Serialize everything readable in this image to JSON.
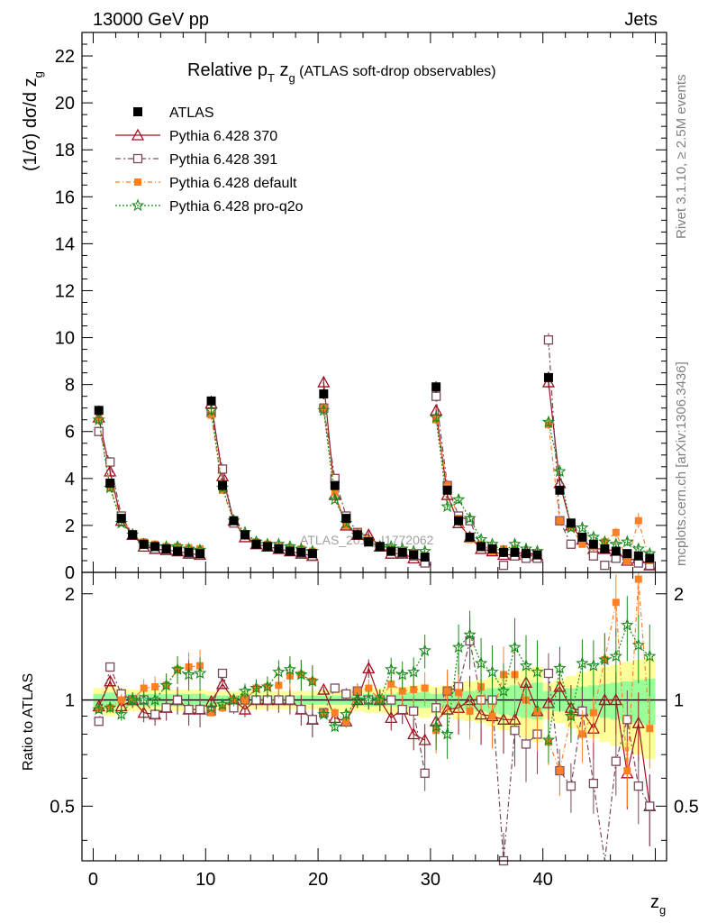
{
  "header": {
    "left": "13000 GeV pp",
    "right": "Jets"
  },
  "side_labels": {
    "rivet": "Rivet 3.1.10, ≥ 2.5M events",
    "mcplots": "mcplots.cern.ch [arXiv:1306.3436]"
  },
  "watermark": "ATLAS_2019_I1772062",
  "colors": {
    "atlas": "#000000",
    "p370": "#a01020",
    "p391": "#7a4a5a",
    "pdefault": "#ff7f24",
    "pq2o": "#1a8a1a",
    "band_yellow": "#ffff99",
    "band_green": "#99ff99"
  },
  "chart_data": [
    {
      "type": "scatter",
      "title_main": "Relative p",
      "title_sub": "T",
      "title_var": " z",
      "title_var_sub": "g",
      "title_rest": " (ATLAS soft-drop observables)",
      "ylabel": "(1/σ) dσ/d z",
      "ylabel_sub": "g",
      "xlim": [
        -1,
        51
      ],
      "ylim": [
        0,
        23
      ],
      "yticks": [
        0,
        2,
        4,
        6,
        8,
        10,
        12,
        14,
        16,
        18,
        20,
        22
      ],
      "x": [
        0.5,
        1.5,
        2.5,
        3.5,
        4.5,
        5.5,
        6.5,
        7.5,
        8.5,
        9.5,
        10.5,
        11.5,
        12.5,
        13.5,
        14.5,
        15.5,
        16.5,
        17.5,
        18.5,
        19.5,
        20.5,
        21.5,
        22.5,
        23.5,
        24.5,
        25.5,
        26.5,
        27.5,
        28.5,
        29.5,
        30.5,
        31.5,
        32.5,
        33.5,
        34.5,
        35.5,
        36.5,
        37.5,
        38.5,
        39.5,
        40.5,
        41.5,
        42.5,
        43.5,
        44.5,
        45.5,
        46.5,
        47.5,
        48.5,
        49.5
      ],
      "series": [
        {
          "name": "ATLAS",
          "values": [
            6.9,
            3.8,
            2.3,
            1.6,
            1.2,
            1.1,
            1.0,
            0.9,
            0.85,
            0.8,
            7.3,
            3.7,
            2.2,
            1.6,
            1.2,
            1.1,
            1.0,
            0.9,
            0.85,
            0.8,
            7.6,
            3.7,
            2.3,
            1.6,
            1.3,
            1.1,
            0.9,
            0.85,
            0.75,
            0.65,
            7.9,
            3.5,
            2.2,
            1.5,
            1.1,
            1.0,
            0.85,
            0.85,
            0.8,
            0.75,
            8.3,
            3.5,
            2.1,
            1.5,
            1.2,
            1.0,
            0.9,
            0.8,
            0.7,
            0.6
          ]
        },
        {
          "name": "Pythia 6.428 370",
          "values": [
            6.6,
            4.3,
            2.2,
            1.6,
            1.1,
            1.0,
            0.95,
            0.9,
            0.8,
            0.75,
            7.2,
            4.1,
            2.2,
            1.5,
            1.2,
            1.1,
            1.0,
            0.9,
            0.8,
            0.7,
            8.1,
            3.3,
            2.0,
            1.6,
            1.6,
            1.1,
            0.8,
            0.8,
            0.6,
            0.5,
            6.9,
            3.3,
            2.1,
            1.5,
            1.0,
            0.9,
            0.75,
            0.75,
            0.9,
            0.7,
            8.1,
            3.8,
            2.0,
            1.4,
            1.0,
            1.0,
            0.9,
            0.5,
            0.6,
            0.3
          ]
        },
        {
          "name": "Pythia 6.428 391",
          "values": [
            6.0,
            4.7,
            2.4,
            1.6,
            1.2,
            1.0,
            0.95,
            0.9,
            0.8,
            0.75,
            6.8,
            4.4,
            2.1,
            1.6,
            1.2,
            1.1,
            1.0,
            0.9,
            0.8,
            0.7,
            7.0,
            4.0,
            2.4,
            1.7,
            1.3,
            1.1,
            0.9,
            0.8,
            0.7,
            0.4,
            7.5,
            3.7,
            2.4,
            2.2,
            1.1,
            1.0,
            0.3,
            0.7,
            0.6,
            0.6,
            9.9,
            2.2,
            1.2,
            1.4,
            0.7,
            0.3,
            0.6,
            0.7,
            0.4,
            0.3
          ]
        },
        {
          "name": "Pythia 6.428 default",
          "values": [
            6.5,
            3.6,
            2.3,
            1.6,
            1.3,
            1.2,
            1.1,
            1.1,
            1.05,
            1.0,
            6.7,
            3.5,
            2.2,
            1.6,
            1.3,
            1.2,
            1.1,
            1.05,
            1.0,
            0.9,
            7.0,
            3.4,
            2.0,
            1.7,
            1.4,
            1.1,
            1.0,
            0.9,
            0.8,
            0.7,
            6.5,
            3.7,
            2.3,
            1.4,
            1.2,
            0.9,
            1.0,
            1.0,
            0.8,
            0.7,
            6.3,
            2.2,
            1.9,
            1.2,
            1.1,
            1.3,
            1.7,
            0.5,
            2.2,
            0.5
          ]
        },
        {
          "name": "Pythia 6.428 pro-q2o",
          "values": [
            6.5,
            3.6,
            2.1,
            1.6,
            1.2,
            1.1,
            1.1,
            1.1,
            1.0,
            0.95,
            6.9,
            3.6,
            2.2,
            1.7,
            1.3,
            1.2,
            1.2,
            1.1,
            1.0,
            0.9,
            6.9,
            3.1,
            2.1,
            1.6,
            1.3,
            1.1,
            1.1,
            1.0,
            0.9,
            0.9,
            6.6,
            2.8,
            3.1,
            2.3,
            1.4,
            1.2,
            0.9,
            1.2,
            1.0,
            0.9,
            6.4,
            4.3,
            1.9,
            1.9,
            1.5,
            1.3,
            1.2,
            1.3,
            1.0,
            0.8
          ]
        }
      ]
    },
    {
      "type": "scatter",
      "ylabel": "Ratio to ATLAS",
      "xlabel": "z",
      "xlabel_sub": "g",
      "xlim": [
        -1,
        51
      ],
      "ylim": [
        0.35,
        2.3
      ],
      "yticks": [
        0.5,
        1,
        2
      ],
      "xticks": [
        0,
        10,
        20,
        30,
        40
      ],
      "reference_line": 1,
      "series": [
        {
          "name": "Pythia 6.428 370",
          "values": [
            0.96,
            1.13,
            0.96,
            1.0,
            0.92,
            0.91,
            0.95,
            1.0,
            0.94,
            0.94,
            0.99,
            1.11,
            1.0,
            0.94,
            1.0,
            1.0,
            1.0,
            1.0,
            0.94,
            0.88,
            1.07,
            0.89,
            0.87,
            1.0,
            1.23,
            1.0,
            0.89,
            0.94,
            0.8,
            0.77,
            0.87,
            0.94,
            0.95,
            1.0,
            0.91,
            0.9,
            0.88,
            0.88,
            1.12,
            0.93,
            0.98,
            1.09,
            0.95,
            0.93,
            0.83,
            1.0,
            1.0,
            0.62,
            0.86,
            0.5
          ]
        },
        {
          "name": "Pythia 6.428 391",
          "values": [
            0.87,
            1.24,
            1.04,
            1.0,
            1.0,
            0.91,
            0.95,
            1.0,
            0.94,
            0.94,
            0.93,
            1.19,
            0.95,
            1.0,
            1.0,
            1.0,
            1.0,
            1.0,
            0.94,
            0.88,
            0.92,
            1.08,
            1.04,
            1.06,
            1.0,
            1.0,
            1.0,
            0.94,
            0.93,
            0.62,
            0.95,
            1.06,
            1.09,
            1.47,
            1.0,
            1.0,
            0.35,
            0.82,
            0.75,
            0.8,
            1.19,
            0.63,
            0.57,
            0.93,
            0.58,
            0.3,
            0.67,
            0.88,
            0.57,
            0.5
          ]
        },
        {
          "name": "Pythia 6.428 default",
          "values": [
            0.94,
            0.95,
            1.0,
            1.0,
            1.08,
            1.09,
            1.1,
            1.22,
            1.24,
            1.25,
            0.92,
            0.95,
            1.0,
            1.0,
            1.08,
            1.09,
            1.1,
            1.17,
            1.18,
            1.13,
            0.92,
            0.92,
            0.87,
            1.06,
            1.08,
            1.0,
            1.11,
            1.06,
            1.07,
            1.08,
            0.82,
            1.06,
            1.05,
            0.93,
            1.09,
            0.9,
            1.18,
            1.18,
            1.0,
            0.93,
            0.76,
            0.63,
            0.9,
            0.8,
            0.92,
            1.3,
            1.89,
            0.63,
            2.2,
            0.83
          ]
        },
        {
          "name": "Pythia 6.428 pro-q2o",
          "values": [
            0.94,
            0.95,
            0.91,
            1.0,
            1.0,
            1.0,
            1.1,
            1.22,
            1.18,
            1.19,
            0.95,
            0.97,
            1.0,
            1.06,
            1.08,
            1.09,
            1.2,
            1.22,
            1.18,
            1.13,
            0.91,
            0.84,
            0.91,
            1.0,
            1.0,
            1.0,
            1.22,
            1.18,
            1.2,
            1.38,
            0.84,
            0.8,
            1.41,
            1.53,
            1.27,
            1.2,
            1.06,
            1.41,
            1.25,
            1.2,
            0.77,
            1.23,
            0.9,
            1.27,
            1.25,
            1.3,
            1.33,
            1.63,
            1.43,
            1.33
          ]
        }
      ],
      "band_yellow": [
        0.08,
        0.1,
        0.08,
        0.07,
        0.07,
        0.07,
        0.07,
        0.07,
        0.07,
        0.07,
        0.06,
        0.06,
        0.06,
        0.06,
        0.06,
        0.06,
        0.06,
        0.06,
        0.06,
        0.06,
        0.07,
        0.07,
        0.07,
        0.07,
        0.08,
        0.08,
        0.09,
        0.09,
        0.1,
        0.11,
        0.09,
        0.1,
        0.12,
        0.13,
        0.14,
        0.16,
        0.18,
        0.2,
        0.22,
        0.24,
        0.12,
        0.14,
        0.17,
        0.2,
        0.22,
        0.24,
        0.26,
        0.28,
        0.3,
        0.32
      ],
      "band_green": [
        0.04,
        0.05,
        0.04,
        0.04,
        0.04,
        0.04,
        0.04,
        0.04,
        0.04,
        0.04,
        0.03,
        0.03,
        0.03,
        0.03,
        0.03,
        0.03,
        0.03,
        0.03,
        0.03,
        0.03,
        0.03,
        0.03,
        0.03,
        0.03,
        0.04,
        0.04,
        0.04,
        0.05,
        0.05,
        0.05,
        0.04,
        0.05,
        0.06,
        0.06,
        0.07,
        0.08,
        0.09,
        0.1,
        0.11,
        0.12,
        0.06,
        0.07,
        0.08,
        0.09,
        0.1,
        0.11,
        0.12,
        0.13,
        0.14,
        0.15
      ]
    }
  ]
}
